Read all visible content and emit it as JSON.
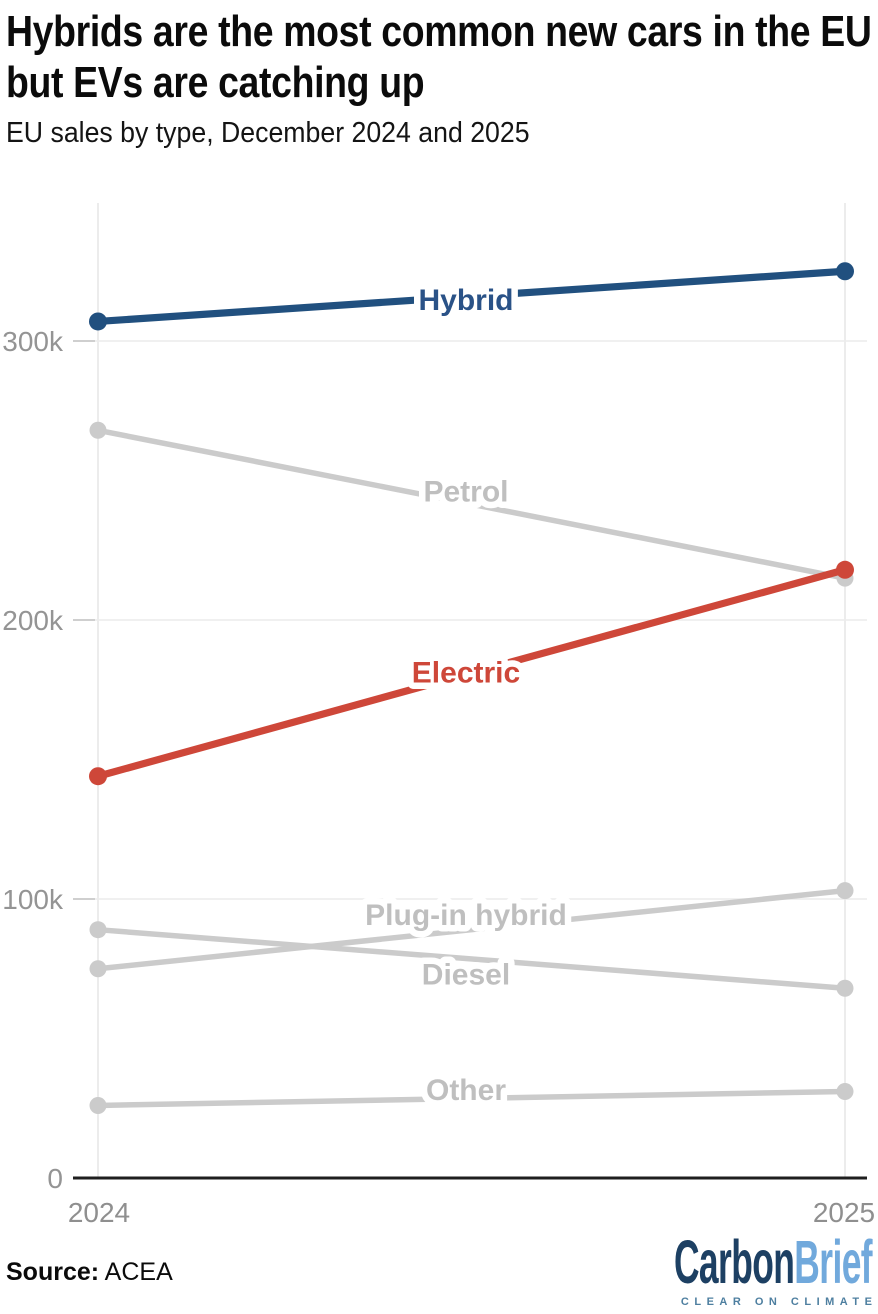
{
  "header": {
    "title": "Hybrids are the most common new cars in the EU but EVs are catching up",
    "subtitle": "EU sales by type, December 2024 and 2025"
  },
  "chart_data": {
    "type": "line",
    "variant": "slope",
    "title": "EU sales by type, December 2024 and 2025",
    "x": [
      "2024",
      "2025"
    ],
    "unit": "vehicles, thousands",
    "ylim": [
      0,
      350
    ],
    "yticks": [
      0,
      100,
      200,
      300
    ],
    "ytick_labels": [
      "0",
      "100k",
      "200k",
      "300k"
    ],
    "grid": "horizontal gridlines at yticks plus vertical guides at each x",
    "legend_position": "inline labels on lines",
    "series": [
      {
        "name": "Hybrid",
        "values": [
          307,
          325
        ],
        "color": "#21507F",
        "label_color": "#2A5287",
        "emphasis": true
      },
      {
        "name": "Petrol",
        "values": [
          268,
          215
        ],
        "color": "#CBCBCB",
        "label_color": "#BFBFBF",
        "emphasis": false
      },
      {
        "name": "Electric",
        "values": [
          144,
          218
        ],
        "color": "#CE4739",
        "label_color": "#CE4739",
        "emphasis": true
      },
      {
        "name": "Plug-in hybrid",
        "values": [
          75,
          103
        ],
        "color": "#CBCBCB",
        "label_color": "#BFBFBF",
        "emphasis": false
      },
      {
        "name": "Diesel",
        "values": [
          89,
          68
        ],
        "color": "#CBCBCB",
        "label_color": "#BFBFBF",
        "emphasis": false
      },
      {
        "name": "Other",
        "values": [
          26,
          31
        ],
        "color": "#CBCBCB",
        "label_color": "#BFBFBF",
        "emphasis": false
      }
    ]
  },
  "footer": {
    "source_label": "Source:",
    "source_value": "ACEA",
    "logo": {
      "part1": "Carbon",
      "part2": "Brief",
      "tagline": "CLEAR ON CLIMATE",
      "part1_color": "#1D4063",
      "part2_color": "#71A9DC",
      "tagline_color": "#4E7FA0"
    }
  }
}
